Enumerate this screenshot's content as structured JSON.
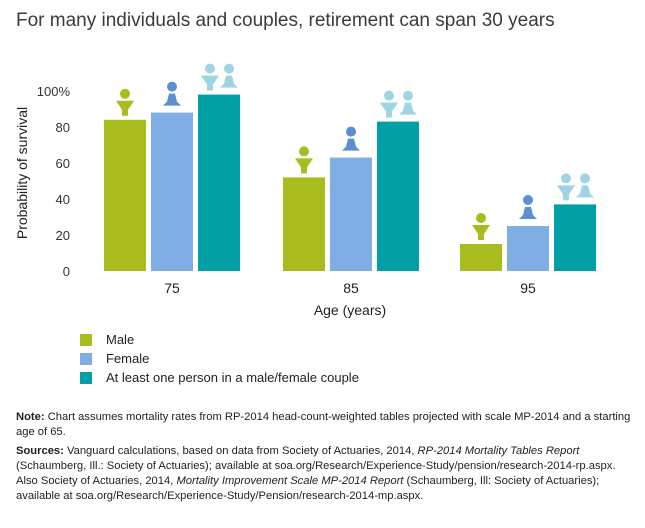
{
  "title": "For many individuals and couples, retirement can span 30 years",
  "colors": {
    "male": "#a8bc1e",
    "female": "#7eaee3",
    "couple": "#00a0a6",
    "male_icon": "#a8bc1e",
    "female_icon": "#5b8fcf",
    "couple_icon": "#9fd5e2"
  },
  "legend": {
    "male": "Male",
    "female": "Female",
    "couple": "At least one person in a male/female couple"
  },
  "chart_data": {
    "type": "bar",
    "categories": [
      "75",
      "85",
      "95"
    ],
    "series": [
      {
        "name": "Male",
        "values": [
          84,
          52,
          15
        ],
        "icon": "male-person-icon"
      },
      {
        "name": "Female",
        "values": [
          88,
          63,
          25
        ],
        "icon": "female-person-icon"
      },
      {
        "name": "At least one person in a male/female couple",
        "values": [
          98,
          83,
          37
        ],
        "icon": "couple-icon"
      }
    ],
    "xlabel": "Age (years)",
    "ylabel": "Probability of survival",
    "ylim": [
      0,
      100
    ],
    "yticks": [
      "0",
      "20",
      "40",
      "60",
      "80",
      "100%"
    ],
    "grid": false,
    "legend_position": "bottom-left"
  },
  "notes": {
    "note_label": "Note:",
    "note_text": " Chart assumes mortality rates from RP-2014 head-count-weighted tables projected with scale MP-2014 and a starting age of 65.",
    "sources_label": "Sources:",
    "sources_1": " Vanguard calculations, based on data from Society of Actuaries, 2014, ",
    "sources_title_1": "RP-2014 Mortality Tables Report",
    "sources_2": " (Schaumberg, Ill.: Society of Actuaries); available at soa.org/Research/Experience-Study/pension/research-2014-rp.aspx. Also Society of Actuaries, 2014, ",
    "sources_title_2": "Mortality Improvement Scale MP-2014 Report",
    "sources_3": " (Schaumberg, Ill: Society of Actuaries); available at soa.org/Research/Experience-Study/Pension/research-2014-mp.aspx."
  }
}
